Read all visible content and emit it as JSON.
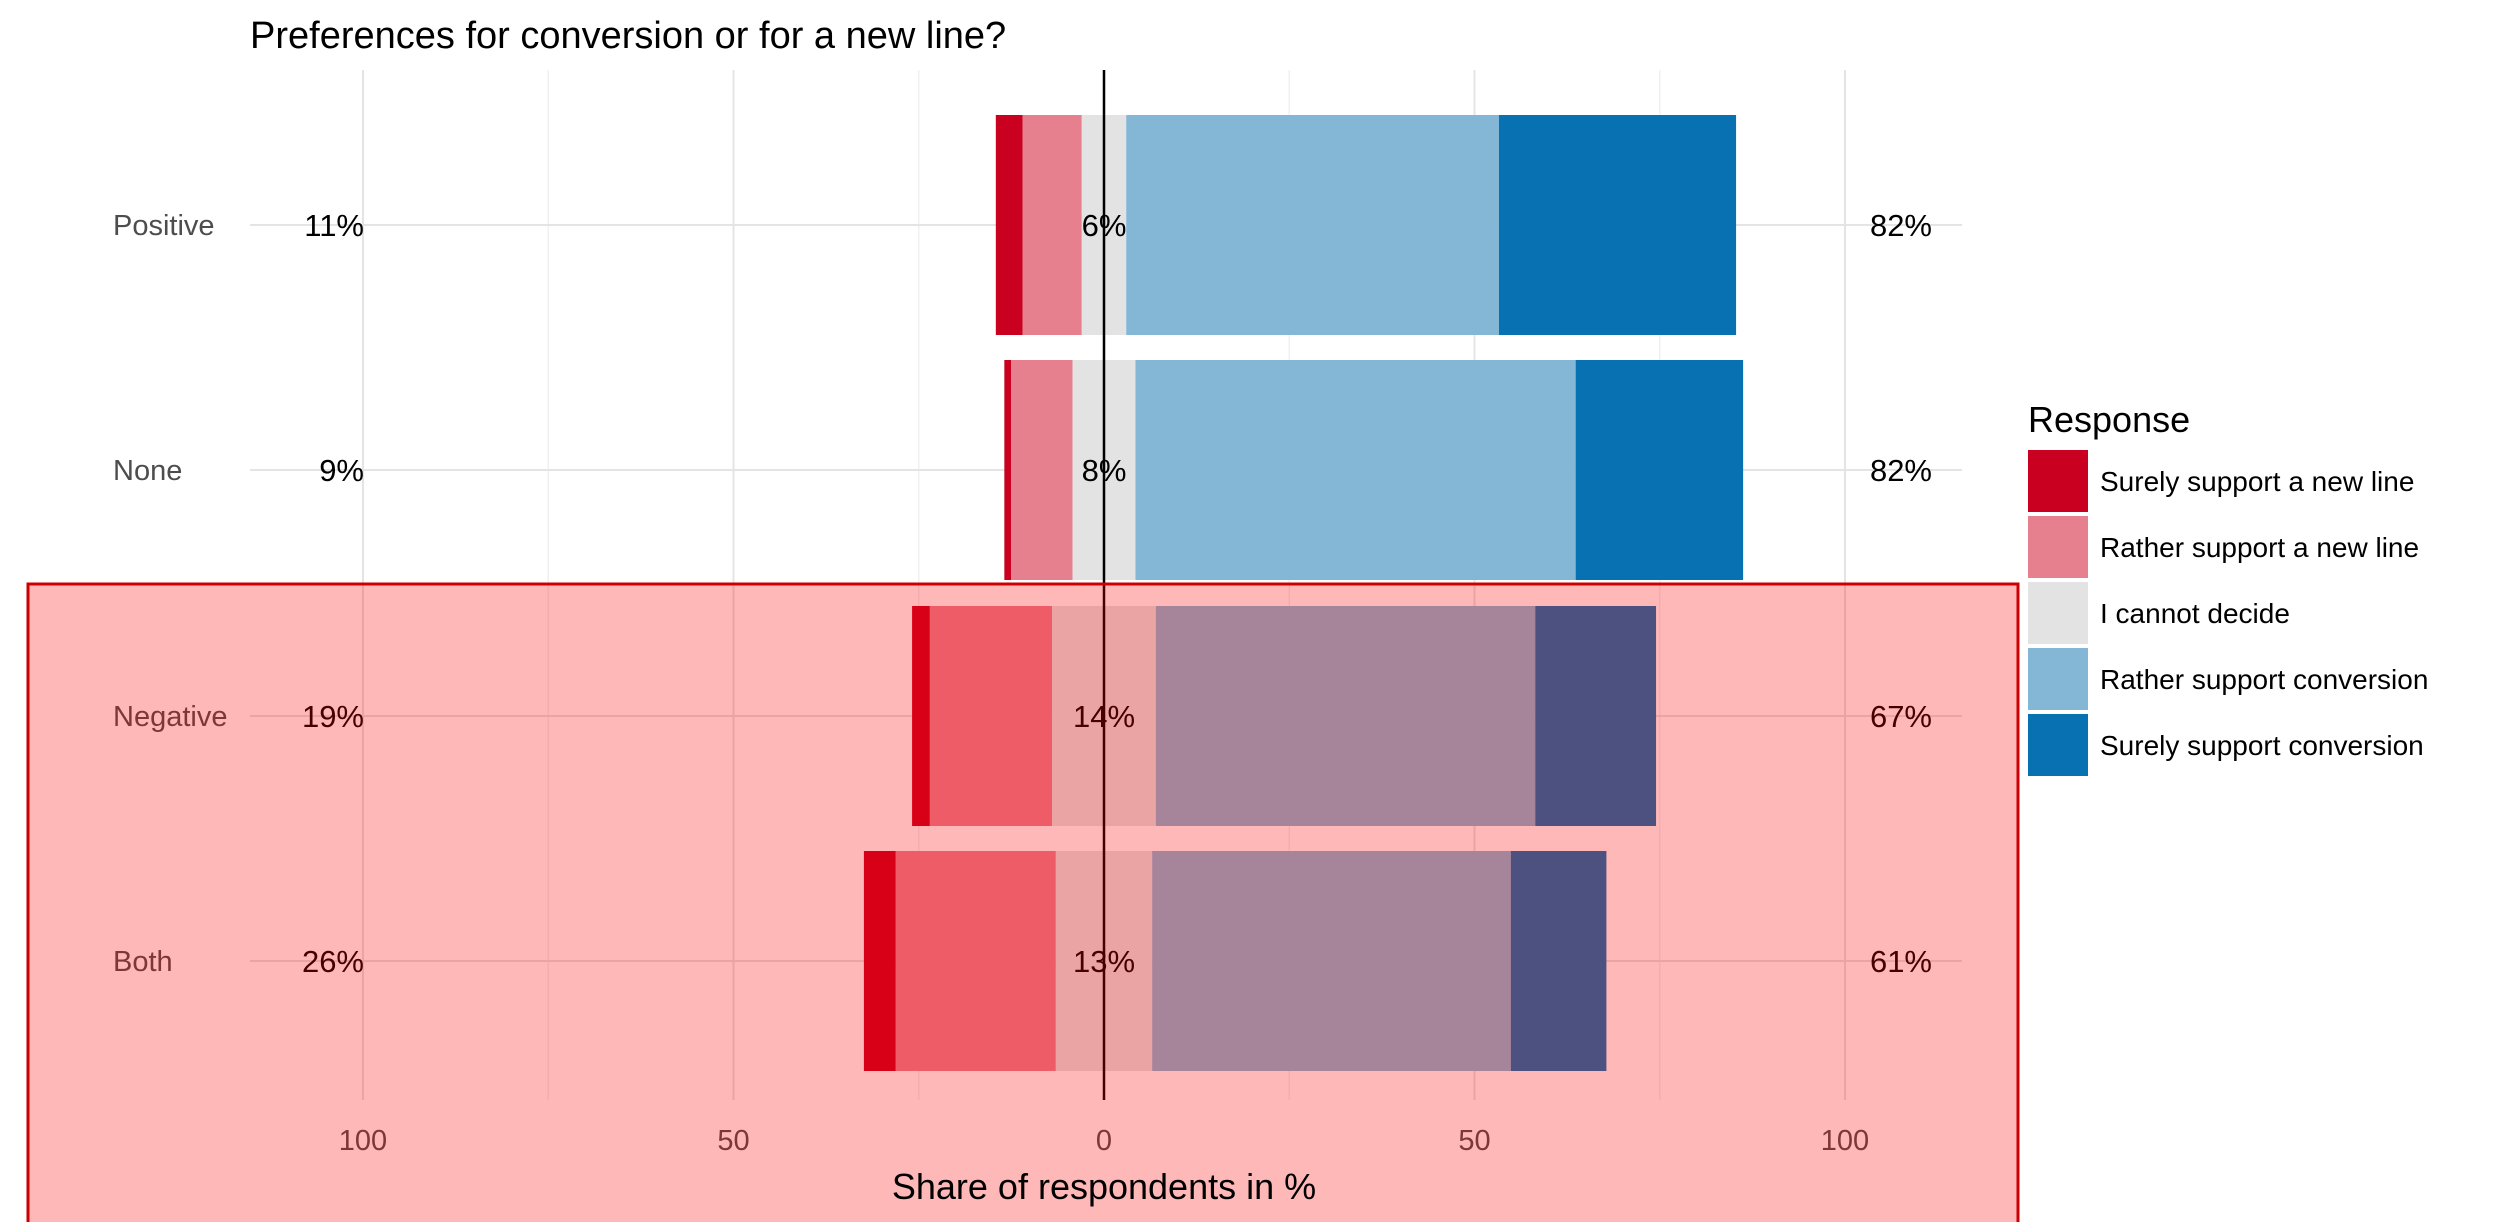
{
  "chart_data": {
    "type": "bar",
    "orientation": "horizontal",
    "stacked": "diverging",
    "title": "Preferences for conversion or for a new line?",
    "xlabel": "Share of respondents in %",
    "xlim": [
      -100,
      100
    ],
    "x_ticks": [
      {
        "value": -100,
        "label": "100"
      },
      {
        "value": -50,
        "label": "50"
      },
      {
        "value": 0,
        "label": "0"
      },
      {
        "value": 50,
        "label": "50"
      },
      {
        "value": 100,
        "label": "100"
      }
    ],
    "grid": true,
    "categories": [
      "Positive",
      "None",
      "Negative",
      "Both"
    ],
    "series": [
      {
        "name": "Surely support a new line",
        "color": "#ca0020",
        "values": [
          3.6,
          0.9,
          2.4,
          4.3
        ]
      },
      {
        "name": "Rather support a new line",
        "color": "#e6808f",
        "values": [
          8.0,
          8.3,
          16.5,
          21.6
        ]
      },
      {
        "name": "I cannot decide",
        "color": "#e3e3e3",
        "values": [
          6.0,
          8.5,
          14.0,
          13.0
        ]
      },
      {
        "name": "Rather support conversion",
        "color": "#84b7d6",
        "values": [
          50.3,
          59.4,
          51.2,
          48.4
        ]
      },
      {
        "name": "Surely support conversion",
        "color": "#0771b2",
        "values": [
          32.0,
          22.6,
          16.3,
          12.9
        ]
      }
    ],
    "left_totals": [
      "11%",
      "9%",
      "19%",
      "26%"
    ],
    "center_labels": [
      "6%",
      "8%",
      "14%",
      "13%"
    ],
    "right_totals": [
      "82%",
      "82%",
      "67%",
      "61%"
    ],
    "legend": {
      "title": "Response",
      "position": "right"
    },
    "highlight": {
      "categories": [
        "Negative",
        "Both"
      ],
      "fill": "#ff0000",
      "fill_opacity": 0.28,
      "stroke": "#cc0000"
    }
  }
}
